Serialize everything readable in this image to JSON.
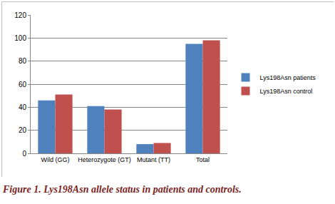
{
  "chart_data": {
    "type": "bar",
    "caption": "Figure 1. Lys198Asn allele status in patients and controls.",
    "categories": [
      "Wild (GG)",
      "Heterozygote (GT)",
      "Mutant (TT)",
      "Total"
    ],
    "series": [
      {
        "name": "Lys198Asn patients",
        "color": "#4f81bd",
        "values": [
          46,
          41,
          8,
          95
        ]
      },
      {
        "name": "Lys198Asn control",
        "color": "#c0504d",
        "values": [
          51,
          38,
          9,
          98
        ]
      }
    ],
    "ylim": [
      0,
      120
    ],
    "yticks": [
      0,
      20,
      40,
      60,
      80,
      100,
      120
    ],
    "grid": true,
    "legend": "right"
  }
}
